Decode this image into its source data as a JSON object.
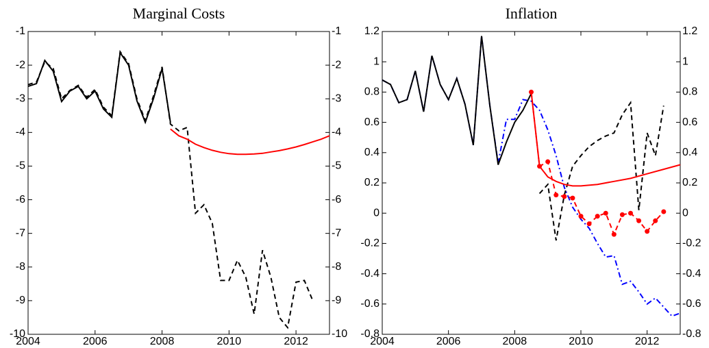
{
  "chart_data": [
    {
      "type": "line",
      "title": "Marginal Costs",
      "xlim": [
        2004,
        2013
      ],
      "xticks": [
        2004,
        2006,
        2008,
        2010,
        2012
      ],
      "ylim": [
        -10,
        -1
      ],
      "yticks": [
        -10,
        -9,
        -8,
        -7,
        -6,
        -5,
        -4,
        -3,
        -2,
        -1
      ],
      "right_axis_labels": true,
      "series": [
        {
          "color": "#000000",
          "dash": "dashed",
          "marker": false,
          "x": [
            2004,
            2004.25,
            2004.5,
            2004.75,
            2005,
            2005.25,
            2005.5,
            2005.75,
            2006,
            2006.25,
            2006.5,
            2006.75,
            2007,
            2007.25,
            2007.5,
            2007.75,
            2008,
            2008.25,
            2008.5,
            2008.75,
            2009,
            2009.25,
            2009.5,
            2009.75,
            2010,
            2010.25,
            2010.5,
            2010.75,
            2011,
            2011.25,
            2011.5,
            2011.75,
            2012,
            2012.25,
            2012.5
          ],
          "values": [
            -2.58,
            -2.5,
            -1.9,
            -2.1,
            -3.0,
            -2.75,
            -2.6,
            -2.95,
            -2.72,
            -3.25,
            -3.5,
            -1.6,
            -1.95,
            -3.0,
            -3.65,
            -2.9,
            -2.05,
            -3.75,
            -3.95,
            -3.85,
            -6.4,
            -6.15,
            -6.7,
            -8.4,
            -8.4,
            -7.8,
            -8.3,
            -9.4,
            -7.5,
            -8.3,
            -9.5,
            -9.8,
            -8.45,
            -8.4,
            -9.0
          ]
        },
        {
          "color": "#000000",
          "dash": "solid",
          "marker": false,
          "x": [
            2004,
            2004.25,
            2004.5,
            2004.75,
            2005,
            2005.25,
            2005.5,
            2005.75,
            2006,
            2006.25,
            2006.5,
            2006.75,
            2007,
            2007.25,
            2007.5,
            2007.75,
            2008,
            2008.25
          ],
          "values": [
            -2.63,
            -2.55,
            -1.86,
            -2.18,
            -3.08,
            -2.77,
            -2.63,
            -3.0,
            -2.77,
            -3.3,
            -3.55,
            -1.63,
            -2.0,
            -3.06,
            -3.7,
            -2.98,
            -2.1,
            -3.7
          ]
        },
        {
          "color": "#ff0000",
          "dash": "solid",
          "marker": false,
          "x": [
            2008.25,
            2008.5,
            2008.75,
            2009,
            2009.25,
            2009.5,
            2009.75,
            2010,
            2010.25,
            2010.5,
            2010.75,
            2011,
            2011.25,
            2011.5,
            2011.75,
            2012,
            2012.25,
            2012.5,
            2012.75,
            2013
          ],
          "values": [
            -3.9,
            -4.1,
            -4.2,
            -4.35,
            -4.45,
            -4.53,
            -4.59,
            -4.63,
            -4.65,
            -4.65,
            -4.64,
            -4.62,
            -4.58,
            -4.54,
            -4.49,
            -4.43,
            -4.36,
            -4.28,
            -4.2,
            -4.1
          ]
        }
      ]
    },
    {
      "type": "line",
      "title": "Inflation",
      "xlim": [
        2004,
        2013
      ],
      "xticks": [
        2004,
        2006,
        2008,
        2010,
        2012
      ],
      "ylim": [
        -0.8,
        1.2
      ],
      "yticks": [
        -0.8,
        -0.6,
        -0.4,
        -0.2,
        0,
        0.2,
        0.4,
        0.6,
        0.8,
        1,
        1.2
      ],
      "right_axis_labels": true,
      "series": [
        {
          "color": "#0000ff",
          "dash": "dashdot",
          "marker": false,
          "x": [
            2004,
            2004.25,
            2004.5,
            2004.75,
            2005,
            2005.25,
            2005.5,
            2005.75,
            2006,
            2006.25,
            2006.5,
            2006.75,
            2007,
            2007.25,
            2007.5,
            2007.75,
            2008,
            2008.25,
            2008.5,
            2008.75,
            2009,
            2009.25,
            2009.5,
            2009.75,
            2010,
            2010.25,
            2010.5,
            2010.75,
            2011,
            2011.25,
            2011.5,
            2011.75,
            2012,
            2012.25,
            2012.5,
            2012.75,
            2013
          ],
          "values": [
            0.88,
            0.85,
            0.73,
            0.75,
            0.94,
            0.67,
            1.04,
            0.85,
            0.75,
            0.89,
            0.72,
            0.45,
            1.17,
            0.71,
            0.33,
            0.62,
            0.62,
            0.75,
            0.74,
            0.68,
            0.55,
            0.38,
            0.17,
            0.04,
            -0.04,
            -0.1,
            -0.2,
            -0.29,
            -0.28,
            -0.47,
            -0.45,
            -0.52,
            -0.6,
            -0.56,
            -0.62,
            -0.68,
            -0.66
          ]
        },
        {
          "color": "#000000",
          "dash": "solid",
          "marker": false,
          "x": [
            2004,
            2004.25,
            2004.5,
            2004.75,
            2005,
            2005.25,
            2005.5,
            2005.75,
            2006,
            2006.25,
            2006.5,
            2006.75,
            2007,
            2007.25,
            2007.5,
            2007.75,
            2008,
            2008.25,
            2008.5
          ],
          "values": [
            0.88,
            0.85,
            0.73,
            0.75,
            0.94,
            0.67,
            1.04,
            0.85,
            0.75,
            0.89,
            0.72,
            0.45,
            1.17,
            0.71,
            0.32,
            0.47,
            0.6,
            0.68,
            0.79
          ]
        },
        {
          "color": "#000000",
          "dash": "dashed",
          "marker": false,
          "x": [
            2008.75,
            2009,
            2009.25,
            2009.5,
            2009.75,
            2010,
            2010.25,
            2010.5,
            2010.75,
            2011,
            2011.25,
            2011.5,
            2011.75,
            2012,
            2012.25,
            2012.5
          ],
          "values": [
            0.13,
            0.19,
            -0.18,
            0.12,
            0.31,
            0.38,
            0.44,
            0.48,
            0.51,
            0.53,
            0.65,
            0.73,
            0.02,
            0.53,
            0.38,
            0.71
          ]
        },
        {
          "color": "#ff0000",
          "dash": "solid",
          "marker": false,
          "x": [
            2008.5,
            2008.75,
            2009,
            2009.25,
            2009.5,
            2009.75,
            2010,
            2010.5,
            2011,
            2011.5,
            2012,
            2012.5,
            2013
          ],
          "values": [
            0.8,
            0.31,
            0.24,
            0.21,
            0.19,
            0.18,
            0.18,
            0.19,
            0.21,
            0.23,
            0.26,
            0.29,
            0.32
          ]
        },
        {
          "color": "#ff0000",
          "dash": "dashed",
          "marker": true,
          "x": [
            2008.5,
            2008.75,
            2009,
            2009.25,
            2009.5,
            2009.75,
            2010,
            2010.25,
            2010.5,
            2010.75,
            2011,
            2011.25,
            2011.5,
            2011.75,
            2012,
            2012.25,
            2012.5
          ],
          "values": [
            0.8,
            0.31,
            0.34,
            0.12,
            0.11,
            0.1,
            -0.02,
            -0.07,
            -0.02,
            0.0,
            -0.14,
            -0.01,
            0.0,
            -0.05,
            -0.12,
            -0.05,
            0.01
          ]
        }
      ]
    }
  ]
}
